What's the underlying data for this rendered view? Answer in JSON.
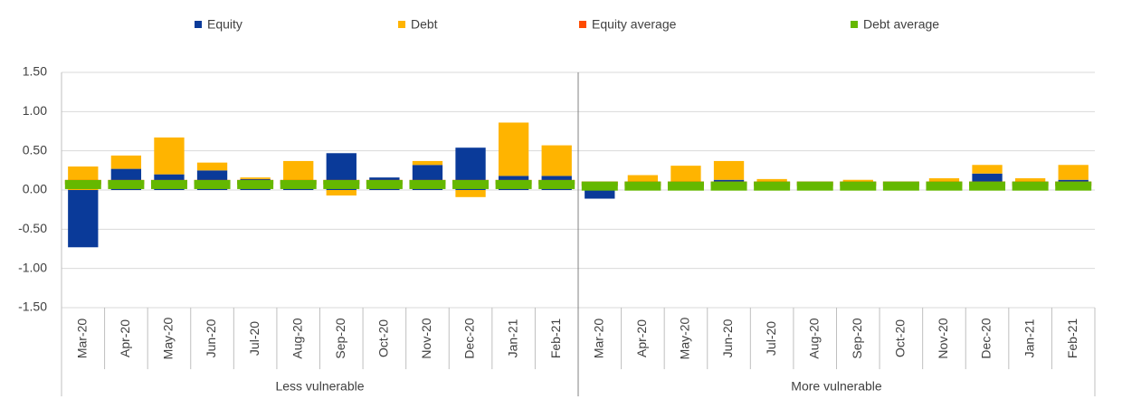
{
  "chart_data": {
    "type": "bar",
    "stacked": true,
    "categories": [
      "Mar-20",
      "Apr-20",
      "May-20",
      "Jun-20",
      "Jul-20",
      "Aug-20",
      "Sep-20",
      "Oct-20",
      "Nov-20",
      "Dec-20",
      "Jan-21",
      "Feb-21",
      "Mar-20",
      "Apr-20",
      "May-20",
      "Jun-20",
      "Jul-20",
      "Aug-20",
      "Sep-20",
      "Oct-20",
      "Nov-20",
      "Dec-20",
      "Jan-21",
      "Feb-21"
    ],
    "groups": [
      "Less vulnerable",
      "More vulnerable"
    ],
    "series": [
      {
        "name": "Equity",
        "color": "#0a3a99",
        "values": [
          -0.73,
          0.27,
          0.2,
          0.25,
          0.14,
          0.02,
          0.47,
          0.16,
          0.32,
          0.54,
          0.18,
          0.18,
          -0.11,
          0.02,
          0.02,
          0.13,
          0.02,
          0.02,
          0.02,
          0.02,
          0.1,
          0.21,
          0.1,
          0.13
        ]
      },
      {
        "name": "Debt",
        "color": "#ffb400",
        "values": [
          0.3,
          0.17,
          0.47,
          0.1,
          0.02,
          0.35,
          -0.07,
          0,
          0.05,
          -0.09,
          0.68,
          0.39,
          0,
          0.17,
          0.29,
          0.24,
          0.12,
          0.05,
          0.11,
          0.03,
          0.05,
          0.11,
          0.05,
          0.19
        ]
      },
      {
        "name": "Equity average",
        "color": "#ff4b00",
        "marker": true,
        "values": [
          0.1,
          0.1,
          0.1,
          0.1,
          0.1,
          0.1,
          0.1,
          0.1,
          0.1,
          0.1,
          0.1,
          0.1,
          0.08,
          0.08,
          0.08,
          0.08,
          0.08,
          0.08,
          0.08,
          0.08,
          0.08,
          0.08,
          0.08,
          0.08
        ]
      },
      {
        "name": "Debt average",
        "color": "#65b800",
        "marker": true,
        "values": [
          0.07,
          0.07,
          0.07,
          0.07,
          0.07,
          0.07,
          0.07,
          0.07,
          0.07,
          0.07,
          0.07,
          0.07,
          0.05,
          0.05,
          0.05,
          0.05,
          0.05,
          0.05,
          0.05,
          0.05,
          0.05,
          0.05,
          0.05,
          0.05
        ]
      }
    ],
    "ylim": [
      -1.5,
      1.5
    ],
    "yticks": [
      {
        "value": -1.5,
        "label": "-1.50"
      },
      {
        "value": -1,
        "label": "-1.00"
      },
      {
        "value": -0.5,
        "label": "-0.50"
      },
      {
        "value": 0,
        "label": "0.00"
      },
      {
        "value": 0.5,
        "label": "0.50"
      },
      {
        "value": 1,
        "label": "1.00"
      },
      {
        "value": 1.5,
        "label": "1.50"
      }
    ],
    "grid": true,
    "legend": "top"
  }
}
